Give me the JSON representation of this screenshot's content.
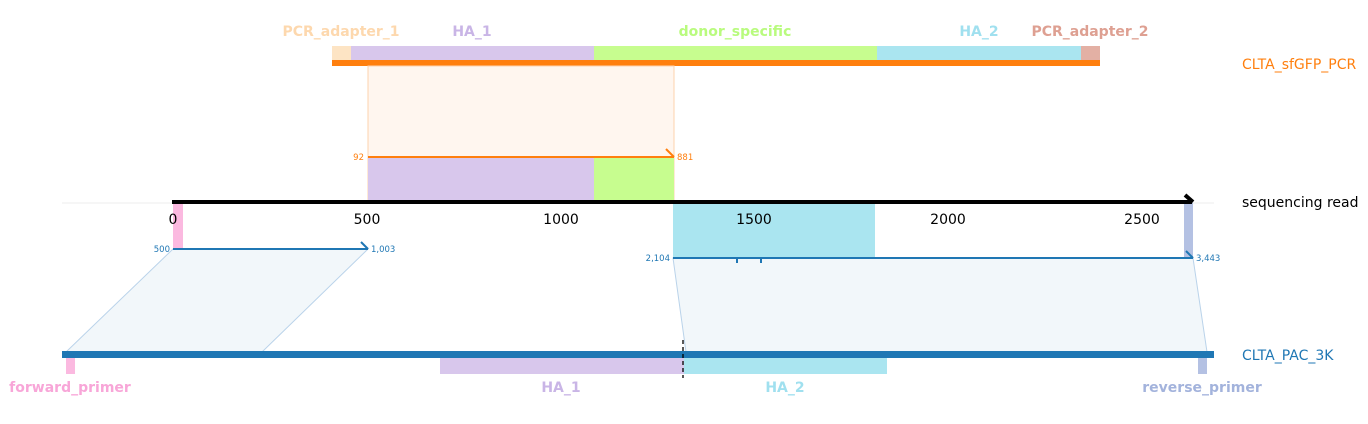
{
  "top": {
    "name": "CLTA_sfGFP_PCR",
    "color": "#ff7f0e",
    "features": [
      {
        "name": "PCR_adapter_1",
        "color": "#fdd8ae"
      },
      {
        "name": "HA_1",
        "color": "#c9b5e6"
      },
      {
        "name": "donor_specific",
        "color": "#b9fb7e"
      },
      {
        "name": "HA_2",
        "color": "#a0e0ef"
      },
      {
        "name": "PCR_adapter_2",
        "color": "#dea092"
      }
    ]
  },
  "read": {
    "name": "sequencing read",
    "color": "#000000",
    "ticks": [
      "0",
      "500",
      "1000",
      "1500",
      "2000",
      "2500"
    ]
  },
  "bottom": {
    "name": "CLTA_PAC_3K",
    "color": "#1f77b4",
    "features": [
      {
        "name": "forward_primer",
        "color": "#f8a6d8"
      },
      {
        "name": "HA_1",
        "color": "#c9b5e6"
      },
      {
        "name": "HA_2",
        "color": "#a0e0ef"
      },
      {
        "name": "reverse_primer",
        "color": "#a3b3dc"
      }
    ]
  },
  "alignments": [
    {
      "target": "CLTA_sfGFP_PCR",
      "start_label": "92",
      "end_label": "881",
      "color": "#ff7f0e"
    },
    {
      "target": "CLTA_PAC_3K",
      "start_label": "500",
      "end_label": "1,003",
      "color": "#1f77b4"
    },
    {
      "target": "CLTA_PAC_3K",
      "start_label": "2,104",
      "end_label": "3,443",
      "color": "#1f77b4"
    }
  ]
}
